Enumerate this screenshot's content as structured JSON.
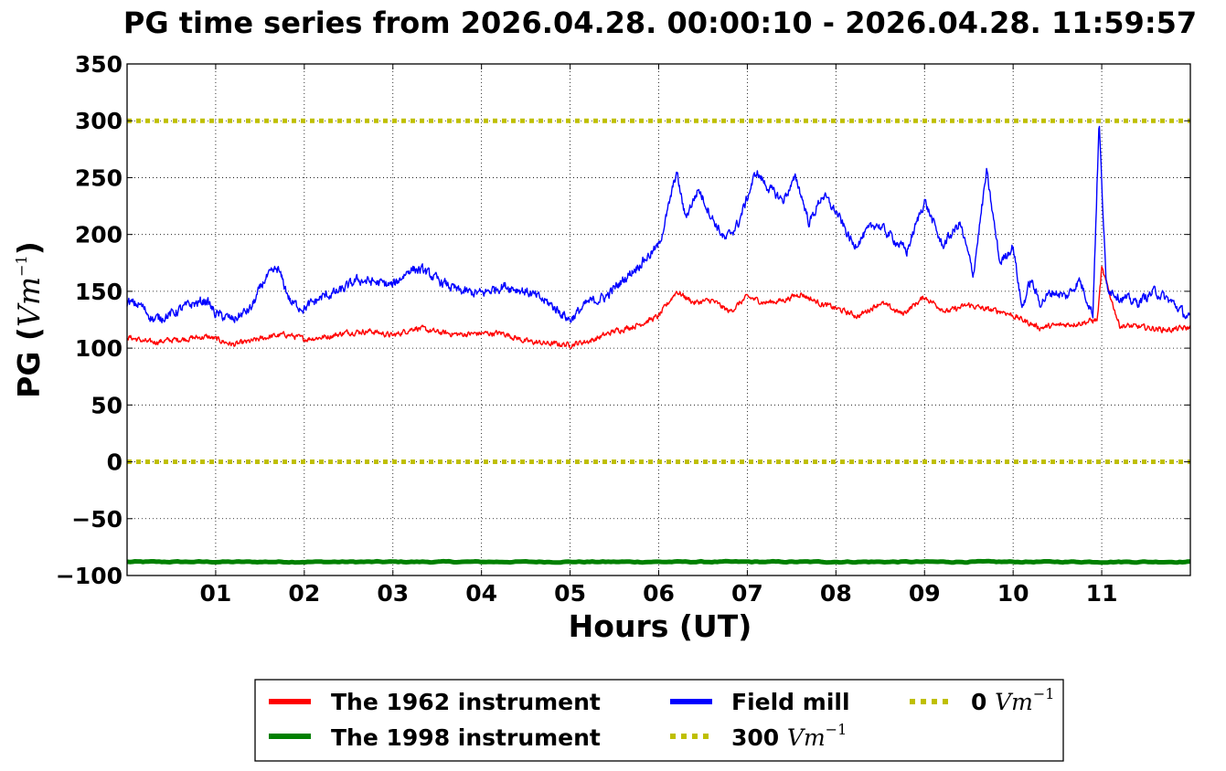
{
  "chart_data": {
    "type": "line",
    "title": "PG time series from 2026.04.28. 00:00:10 - 2026.04.28. 11:59:57",
    "xlabel": "Hours (UT)",
    "ylabel": {
      "prefix": "PG (",
      "unit": "Vm",
      "exp": "−1",
      "suffix": ")"
    },
    "xlim": [
      0,
      12
    ],
    "ylim": [
      -100,
      350
    ],
    "grid": true,
    "x_ticks": [
      {
        "value": 1,
        "label": "01"
      },
      {
        "value": 2,
        "label": "02"
      },
      {
        "value": 3,
        "label": "03"
      },
      {
        "value": 4,
        "label": "04"
      },
      {
        "value": 5,
        "label": "05"
      },
      {
        "value": 6,
        "label": "06"
      },
      {
        "value": 7,
        "label": "07"
      },
      {
        "value": 8,
        "label": "08"
      },
      {
        "value": 9,
        "label": "09"
      },
      {
        "value": 10,
        "label": "10"
      },
      {
        "value": 11,
        "label": "11"
      }
    ],
    "y_ticks": [
      {
        "value": 350,
        "label": "350"
      },
      {
        "value": 300,
        "label": "300"
      },
      {
        "value": 250,
        "label": "250"
      },
      {
        "value": 200,
        "label": "200"
      },
      {
        "value": 150,
        "label": "150"
      },
      {
        "value": 100,
        "label": "100"
      },
      {
        "value": 50,
        "label": "50"
      },
      {
        "value": 0,
        "label": "0"
      },
      {
        "value": -50,
        "label": "−50"
      },
      {
        "value": -100,
        "label": "−100"
      }
    ],
    "legend_placement": "bottom-center",
    "series": [
      {
        "name": "The 1962 instrument",
        "color": "#ff0000",
        "style": "solid",
        "x": [
          0,
          0.25,
          0.5,
          0.75,
          0.9,
          1.0,
          1.2,
          1.4,
          1.6,
          1.8,
          2.0,
          2.25,
          2.5,
          2.75,
          3.0,
          3.25,
          3.5,
          3.75,
          4.0,
          4.25,
          4.5,
          4.75,
          5.0,
          5.25,
          5.5,
          5.75,
          6.0,
          6.2,
          6.4,
          6.6,
          6.8,
          7.0,
          7.2,
          7.4,
          7.6,
          7.8,
          8.0,
          8.25,
          8.5,
          8.75,
          9.0,
          9.25,
          9.5,
          9.7,
          9.9,
          10.1,
          10.3,
          10.5,
          10.75,
          10.95,
          11.0,
          11.2,
          11.5,
          11.75,
          12.0
        ],
        "y": [
          110,
          105,
          107,
          109,
          110,
          108,
          103,
          106,
          110,
          112,
          108,
          110,
          114,
          115,
          111,
          118,
          114,
          112,
          113,
          113,
          106,
          104,
          103,
          107,
          115,
          120,
          128,
          150,
          140,
          142,
          132,
          145,
          140,
          142,
          148,
          140,
          135,
          128,
          140,
          130,
          145,
          132,
          138,
          134,
          132,
          125,
          118,
          120,
          122,
          125,
          170,
          120,
          118,
          116,
          118
        ]
      },
      {
        "name": "The 1998 instrument",
        "color": "#008000",
        "style": "solid",
        "x": [
          0,
          12
        ],
        "y": [
          -88,
          -88
        ]
      },
      {
        "name": "Field mill",
        "color": "#0000ff",
        "style": "solid",
        "x": [
          0,
          0.15,
          0.3,
          0.5,
          0.7,
          0.9,
          1.0,
          1.2,
          1.4,
          1.55,
          1.7,
          1.85,
          2.0,
          2.2,
          2.4,
          2.6,
          2.8,
          3.0,
          3.2,
          3.35,
          3.5,
          3.75,
          4.0,
          4.25,
          4.5,
          4.75,
          5.0,
          5.2,
          5.4,
          5.6,
          5.8,
          6.0,
          6.1,
          6.2,
          6.3,
          6.45,
          6.6,
          6.75,
          6.9,
          7.1,
          7.25,
          7.4,
          7.55,
          7.7,
          7.85,
          8.0,
          8.2,
          8.45,
          8.6,
          8.8,
          9.0,
          9.2,
          9.4,
          9.55,
          9.7,
          9.85,
          10.0,
          10.1,
          10.2,
          10.3,
          10.45,
          10.6,
          10.75,
          10.9,
          10.97,
          11.05,
          11.2,
          11.4,
          11.6,
          11.8,
          12.0
        ],
        "y": [
          140,
          138,
          125,
          130,
          138,
          142,
          130,
          125,
          135,
          160,
          170,
          140,
          135,
          145,
          150,
          160,
          158,
          155,
          170,
          168,
          160,
          150,
          148,
          155,
          150,
          140,
          125,
          140,
          145,
          160,
          175,
          190,
          220,
          255,
          215,
          240,
          215,
          195,
          210,
          255,
          240,
          230,
          250,
          210,
          235,
          220,
          190,
          210,
          200,
          185,
          230,
          190,
          210,
          165,
          255,
          175,
          190,
          135,
          160,
          140,
          150,
          145,
          160,
          130,
          300,
          155,
          145,
          140,
          150,
          140,
          125
        ]
      },
      {
        "name": "300 Vm⁻¹",
        "color": "#bfbf00",
        "style": "dotted",
        "x": [
          0,
          12
        ],
        "y": [
          300,
          300
        ]
      },
      {
        "name": "0 Vm⁻¹",
        "color": "#bfbf00",
        "style": "dotted",
        "x": [
          0,
          12
        ],
        "y": [
          0,
          0
        ]
      }
    ],
    "legend": [
      {
        "series": 0,
        "text": "The 1962 instrument"
      },
      {
        "series": 1,
        "text": "The 1998 instrument"
      },
      {
        "series": 2,
        "text": "Field mill"
      },
      {
        "series": 3,
        "text_prefix": "300 ",
        "unit": "Vm",
        "exp": "−1"
      },
      {
        "series": 4,
        "text_prefix": "0 ",
        "unit": "Vm",
        "exp": "−1"
      }
    ]
  }
}
